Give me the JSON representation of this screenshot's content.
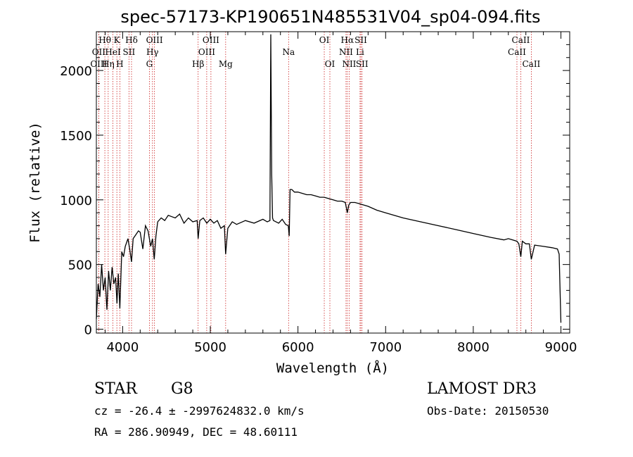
{
  "chart_data": {
    "type": "line",
    "title": "spec-57173-KP190651N485531V04_sp04-094.fits",
    "xlabel": "Wavelength (Å)",
    "ylabel": "Flux (relative)",
    "xlim": [
      3700,
      9100
    ],
    "ylim": [
      -30,
      2300
    ],
    "xticks": [
      4000,
      5000,
      6000,
      7000,
      8000,
      9000
    ],
    "yticks": [
      0,
      500,
      1000,
      1500,
      2000
    ],
    "series": [
      {
        "name": "spectrum",
        "x": [
          3700,
          3720,
          3740,
          3760,
          3780,
          3800,
          3820,
          3840,
          3860,
          3880,
          3900,
          3920,
          3935,
          3950,
          3968,
          3990,
          4010,
          4030,
          4060,
          4080,
          4101,
          4120,
          4150,
          4180,
          4200,
          4230,
          4260,
          4290,
          4320,
          4340,
          4360,
          4380,
          4400,
          4440,
          4480,
          4520,
          4560,
          4600,
          4650,
          4700,
          4750,
          4800,
          4850,
          4861,
          4880,
          4920,
          4960,
          5000,
          5040,
          5080,
          5120,
          5160,
          5175,
          5200,
          5250,
          5300,
          5400,
          5500,
          5600,
          5650,
          5680,
          5690,
          5700,
          5710,
          5720,
          5780,
          5820,
          5860,
          5890,
          5900,
          5910,
          5930,
          5960,
          6000,
          6050,
          6100,
          6150,
          6200,
          6250,
          6300,
          6350,
          6400,
          6450,
          6500,
          6540,
          6563,
          6580,
          6600,
          6650,
          6700,
          6750,
          6800,
          6900,
          7000,
          7200,
          7400,
          7600,
          7800,
          8000,
          8200,
          8350,
          8400,
          8450,
          8498,
          8520,
          8542,
          8560,
          8600,
          8640,
          8662,
          8700,
          8800,
          8900,
          8960,
          8980,
          8990,
          9000
        ],
        "y": [
          80,
          350,
          250,
          500,
          300,
          400,
          150,
          450,
          300,
          480,
          350,
          400,
          200,
          430,
          160,
          600,
          560,
          640,
          700,
          620,
          520,
          700,
          730,
          760,
          750,
          620,
          800,
          760,
          640,
          700,
          540,
          720,
          830,
          860,
          840,
          880,
          870,
          860,
          890,
          820,
          860,
          830,
          840,
          700,
          840,
          860,
          820,
          850,
          820,
          840,
          780,
          800,
          580,
          780,
          830,
          810,
          840,
          820,
          850,
          830,
          840,
          2280,
          1200,
          860,
          840,
          820,
          850,
          810,
          800,
          720,
          1080,
          1080,
          1060,
          1060,
          1050,
          1040,
          1040,
          1030,
          1020,
          1020,
          1010,
          1000,
          990,
          990,
          980,
          900,
          960,
          980,
          980,
          970,
          960,
          950,
          920,
          900,
          860,
          830,
          800,
          770,
          740,
          710,
          690,
          700,
          690,
          680,
          660,
          560,
          680,
          660,
          660,
          540,
          650,
          640,
          630,
          620,
          580,
          300,
          50
        ]
      }
    ],
    "spectral_lines": [
      {
        "label": "Hθ",
        "wavelength": 3797,
        "row": 1
      },
      {
        "label": "OII",
        "wavelength": 3727,
        "row": 2
      },
      {
        "label": "OIII",
        "wavelength": 3727,
        "row": 3
      },
      {
        "label": "HeI",
        "wavelength": 3889,
        "row": 2
      },
      {
        "label": "Hη",
        "wavelength": 3835,
        "row": 3
      },
      {
        "label": "K",
        "wavelength": 3934,
        "row": 1
      },
      {
        "label": "H",
        "wavelength": 3968,
        "row": 3
      },
      {
        "label": "SII",
        "wavelength": 4072,
        "row": 2
      },
      {
        "label": "Hδ",
        "wavelength": 4101,
        "row": 1
      },
      {
        "label": "OIII",
        "wavelength": 4363,
        "row": 1
      },
      {
        "label": "Hγ",
        "wavelength": 4340,
        "row": 2
      },
      {
        "label": "G",
        "wavelength": 4305,
        "row": 3
      },
      {
        "label": "Hβ",
        "wavelength": 4861,
        "row": 3
      },
      {
        "label": "OIII",
        "wavelength": 5007,
        "row": 1
      },
      {
        "label": "OIII",
        "wavelength": 4959,
        "row": 2
      },
      {
        "label": "Mg",
        "wavelength": 5175,
        "row": 3
      },
      {
        "label": "Na",
        "wavelength": 5893,
        "row": 2
      },
      {
        "label": "OI",
        "wavelength": 6300,
        "row": 1
      },
      {
        "label": "OI",
        "wavelength": 6364,
        "row": 3
      },
      {
        "label": "Hα",
        "wavelength": 6563,
        "row": 1
      },
      {
        "label": "NII",
        "wavelength": 6548,
        "row": 2
      },
      {
        "label": "NII",
        "wavelength": 6584,
        "row": 3
      },
      {
        "label": "SII",
        "wavelength": 6717,
        "row": 1
      },
      {
        "label": "Li",
        "wavelength": 6708,
        "row": 2
      },
      {
        "label": "SII",
        "wavelength": 6731,
        "row": 3
      },
      {
        "label": "CaII",
        "wavelength": 8542,
        "row": 1
      },
      {
        "label": "CaII",
        "wavelength": 8498,
        "row": 2
      },
      {
        "label": "CaII",
        "wavelength": 8662,
        "row": 3
      }
    ]
  },
  "info": {
    "class": "STAR",
    "subclass": "G8",
    "survey": "LAMOST DR3",
    "cz": "cz = -26.4 ± -2997624832.0 km/s",
    "obs_date": "Obs-Date: 20150530",
    "coords": "RA = 286.90949, DEC =  48.60111"
  },
  "colors": {
    "line_markers": "#cc2222",
    "spectrum": "#000000"
  }
}
